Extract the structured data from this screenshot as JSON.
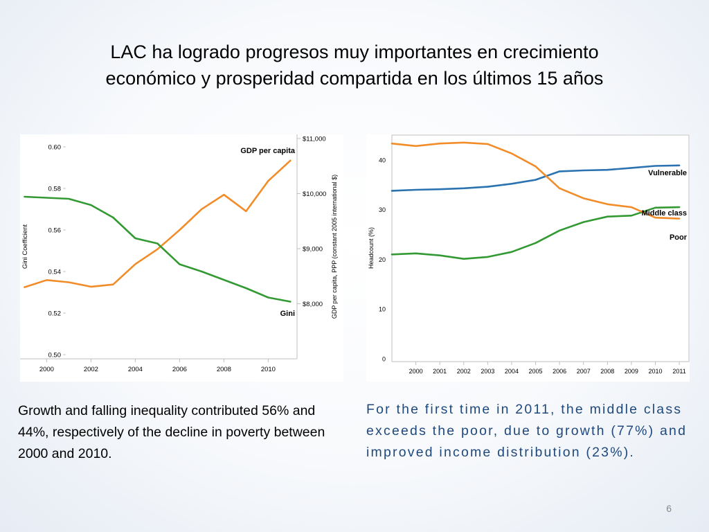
{
  "slide": {
    "title_line1": "LAC ha logrado progresos muy importantes en crecimiento",
    "title_line2": "económico y prosperidad compartida en los últimos 15 años",
    "caption_left": "Growth and falling inequality contributed 56% and 44%, respectively of the decline in poverty between 2000 and 2010.",
    "caption_right": "For the first time in 2011, the middle class exceeds the poor, due to growth (77%) and improved income distribution (23%).",
    "page_number": "6"
  },
  "chart_data": [
    {
      "type": "line",
      "title": "",
      "ylabel": "Gini Coefficient",
      "ylabel_right": "GDP per capita, PPP (constant 2005 international $)",
      "x": [
        1999,
        2000,
        2001,
        2002,
        2003,
        2004,
        2005,
        2006,
        2007,
        2008,
        2009,
        2010,
        2011
      ],
      "x_ticks": [
        2000,
        2002,
        2004,
        2006,
        2008,
        2010
      ],
      "xlim": [
        1998.8,
        2011.3
      ],
      "ylim": [
        0.5,
        0.6
      ],
      "ylim_right": [
        7000,
        11000
      ],
      "y_ticks": [
        "0.60",
        "0.58",
        "0.56",
        "0.54",
        "0.52",
        "0.50"
      ],
      "y_tick_values": [
        0.6,
        0.58,
        0.56,
        0.54,
        0.52,
        0.5
      ],
      "y_ticks_right": [
        "$11,000",
        "$10,000",
        "$9,000",
        "$8,000"
      ],
      "y_tick_values_right": [
        11000,
        10000,
        9000,
        8000
      ],
      "grid": false,
      "series": [
        {
          "name": "GDP per capita",
          "axis": "right",
          "color": "#f28c28",
          "values": [
            8300,
            8430,
            8390,
            8310,
            8350,
            8720,
            8990,
            9340,
            9720,
            9980,
            9680,
            10230,
            10600
          ]
        },
        {
          "name": "Gini",
          "axis": "left",
          "color": "#339933",
          "values": [
            0.576,
            0.5755,
            0.575,
            0.572,
            0.566,
            0.556,
            0.5535,
            0.5435,
            0.54,
            0.536,
            0.532,
            0.5275,
            0.5255
          ]
        }
      ]
    },
    {
      "type": "line",
      "title": "",
      "ylabel": "Headcount (%)",
      "x": [
        1999,
        2000,
        2001,
        2002,
        2003,
        2004,
        2005,
        2006,
        2007,
        2008,
        2009,
        2010,
        2011
      ],
      "x_ticks": [
        2000,
        2001,
        2002,
        2003,
        2004,
        2005,
        2006,
        2007,
        2008,
        2009,
        2010,
        2011
      ],
      "xlim": [
        1999,
        2011.2
      ],
      "ylim": [
        0,
        45
      ],
      "y_ticks": [
        "0",
        "10",
        "20",
        "30",
        "40"
      ],
      "y_tick_values": [
        0,
        10,
        20,
        30,
        40
      ],
      "grid": false,
      "series": [
        {
          "name": "Vulnerable",
          "color": "#2a72b0",
          "values": [
            33.8,
            34.0,
            34.1,
            34.3,
            34.6,
            35.2,
            36.0,
            37.7,
            37.9,
            38.0,
            38.4,
            38.8,
            38.9
          ]
        },
        {
          "name": "Middle class",
          "color": "#339933",
          "values": [
            21.0,
            21.2,
            20.8,
            20.1,
            20.5,
            21.5,
            23.3,
            25.8,
            27.5,
            28.6,
            28.8,
            30.4,
            30.5
          ]
        },
        {
          "name": "Poor",
          "color": "#f28c28",
          "values": [
            43.3,
            42.8,
            43.3,
            43.5,
            43.2,
            41.3,
            38.7,
            34.3,
            32.3,
            31.1,
            30.5,
            28.4,
            28.2
          ]
        }
      ]
    }
  ]
}
